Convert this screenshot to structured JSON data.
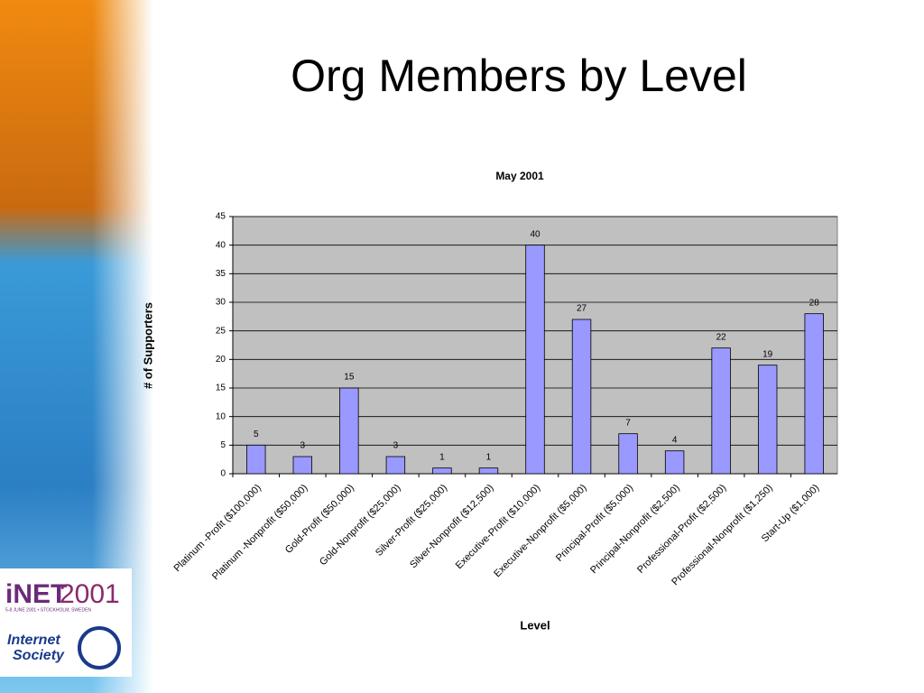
{
  "slide": {
    "title": "Org Members by Level",
    "logos": {
      "inet": "iNET",
      "year": "2001",
      "tagline": "5-8 JUNE 2001 • STOCKHOLM, SWEDEN",
      "isoc_line1": "Internet",
      "isoc_line2": "Society"
    }
  },
  "chart_data": {
    "type": "bar",
    "title": "May 2001",
    "x_label": "Level",
    "y_label": "# of Supporters",
    "categories": [
      "Platinum -Profit ($100,000)",
      "Platinum -Nonprofit ($50,000)",
      "Gold-Profit ($50,000)",
      "Gold-Nonprofit ($25,000)",
      "Silver-Profit ($25,000)",
      "Silver-Nonprofit ($12,500)",
      "Executive-Profit ($10,000)",
      "Executive-Nonprofit ($5,000)",
      "Principal-Profit ($5,000)",
      "Principal-Nonprofit ($2,500)",
      "Professional-Profit ($2,500)",
      "Professional-Nonprofit ($1,250)",
      "Start-Up ($1,000)"
    ],
    "values": [
      5,
      3,
      15,
      3,
      1,
      1,
      40,
      27,
      7,
      4,
      22,
      19,
      28
    ],
    "color": "#9999ff",
    "plot_background": "#c0c0c0",
    "ylim": [
      0,
      45
    ],
    "yticks": [
      0,
      5,
      10,
      15,
      20,
      25,
      30,
      35,
      40,
      45
    ],
    "grid": true
  }
}
